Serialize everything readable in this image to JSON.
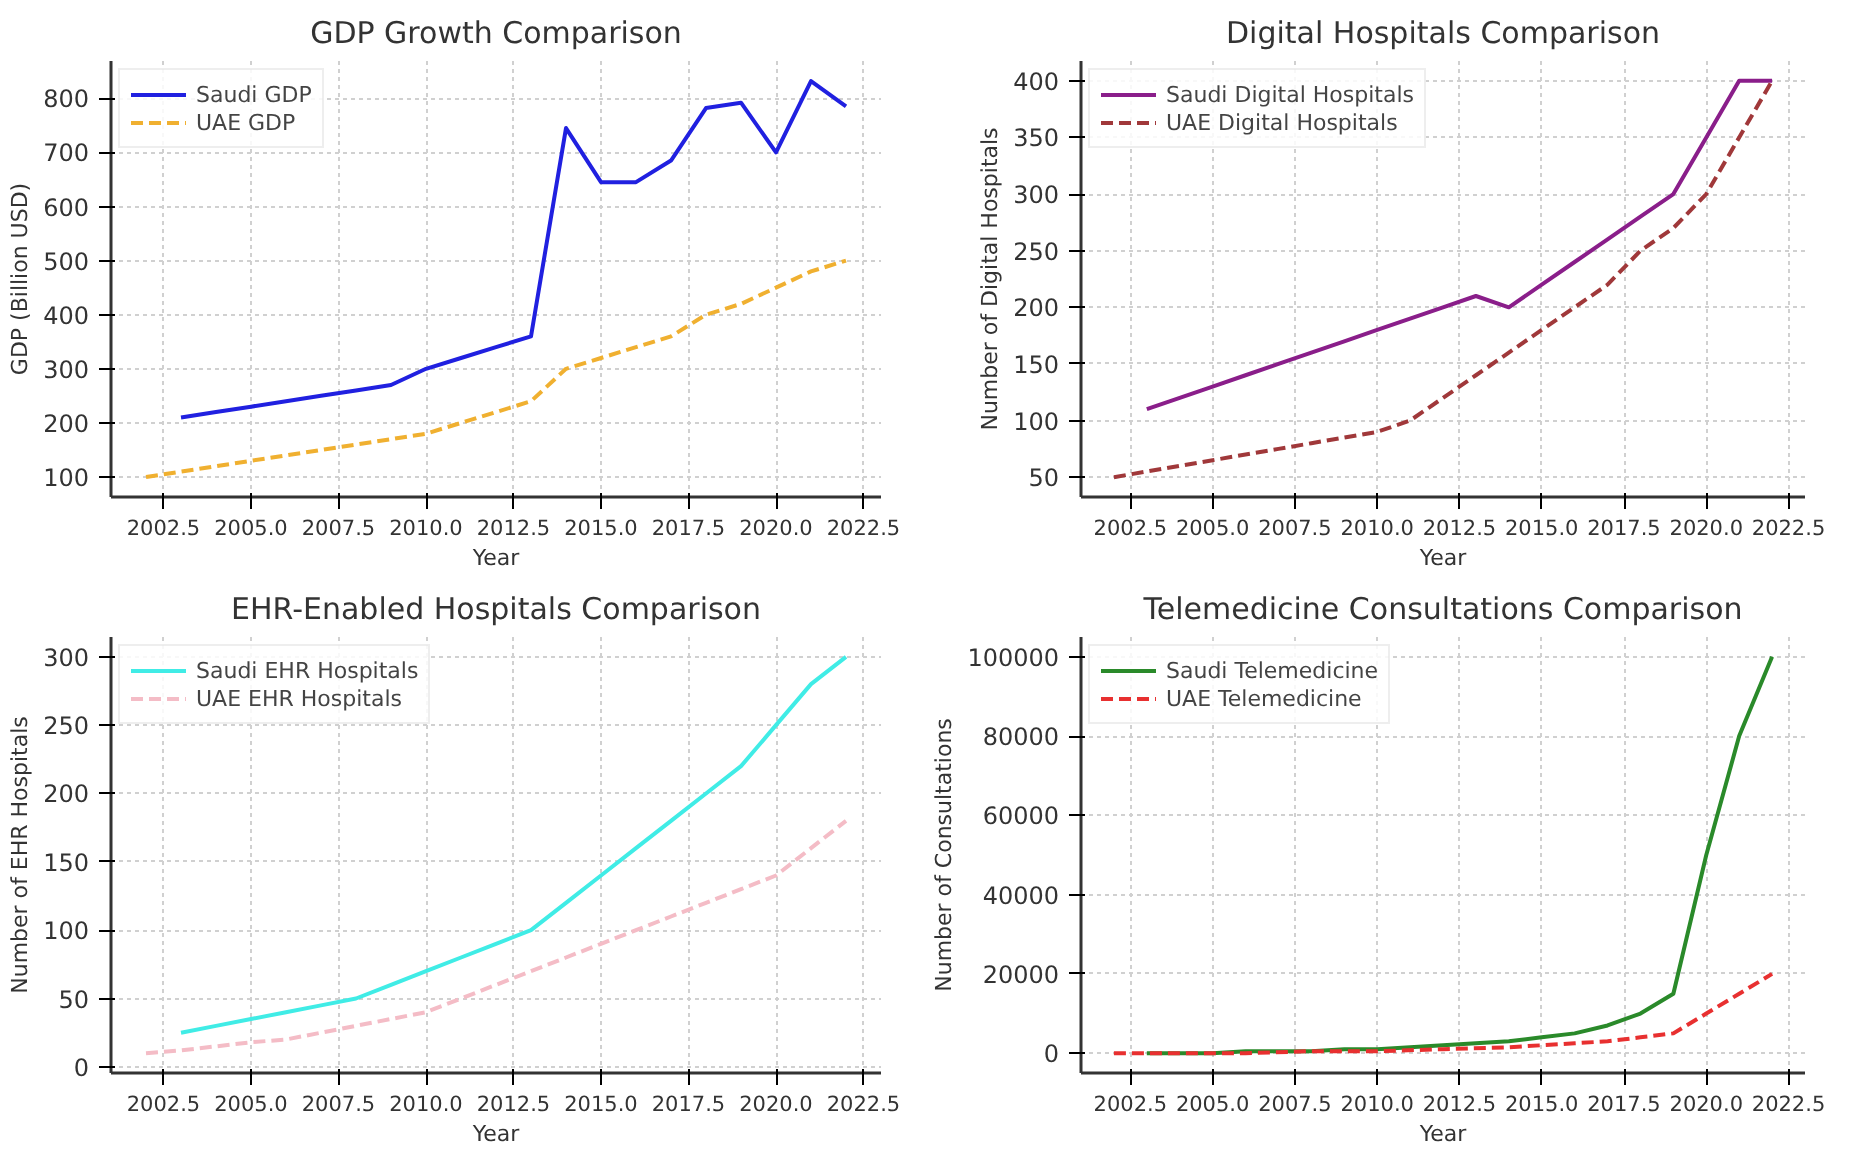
{
  "chart_data": [
    {
      "type": "line",
      "title": "GDP Growth Comparison",
      "xlabel": "Year",
      "ylabel": "GDP (Billion USD)",
      "xlim": [
        2001.0,
        2023.0
      ],
      "xticks": [
        2002.5,
        {
          "value": 2005,
          "label": "2005.0"
        },
        2007.5,
        {
          "value": 2010,
          "label": "2010.0"
        },
        2012.5,
        {
          "value": 2015,
          "label": "2015.0"
        },
        2017.5,
        {
          "value": 2020,
          "label": "2020.0"
        },
        2022.5
      ],
      "ylim": [
        63,
        869
      ],
      "yticks": [
        100,
        200,
        300,
        400,
        500,
        600,
        700,
        800
      ],
      "grid": true,
      "legend": "top left",
      "series": [
        {
          "name": "Saudi GDP",
          "color": "#2020e0",
          "line_style": "solid",
          "x": [
            2003,
            2004,
            2005,
            2006,
            2007,
            2008,
            2009,
            2010,
            2011,
            2012,
            2013,
            2014,
            2015,
            2016,
            2017,
            2018,
            2019,
            2020,
            2021,
            2022
          ],
          "values": [
            210,
            220,
            230,
            240,
            250,
            260,
            270,
            300,
            320,
            340,
            360,
            745,
            645,
            645,
            685,
            782,
            792,
            700,
            832,
            785
          ]
        },
        {
          "name": "UAE GDP",
          "color": "#f0b030",
          "line_style": "dashed",
          "x": [
            2002,
            2003,
            2004,
            2005,
            2006,
            2007,
            2008,
            2009,
            2010,
            2011,
            2012,
            2013,
            2014,
            2015,
            2016,
            2017,
            2018,
            2019,
            2020,
            2021,
            2022
          ],
          "values": [
            100,
            110,
            120,
            130,
            140,
            150,
            160,
            170,
            180,
            200,
            220,
            240,
            300,
            320,
            340,
            360,
            400,
            420,
            450,
            480,
            500
          ]
        }
      ]
    },
    {
      "type": "line",
      "title": "Digital Hospitals Comparison",
      "xlabel": "Year",
      "ylabel": "Number of Digital Hospitals",
      "xlim": [
        2001.0,
        2023.0
      ],
      "xticks": [
        2002.5,
        {
          "value": 2005,
          "label": "2005.0"
        },
        2007.5,
        {
          "value": 2010,
          "label": "2010.0"
        },
        2012.5,
        {
          "value": 2015,
          "label": "2015.0"
        },
        2017.5,
        {
          "value": 2020,
          "label": "2020.0"
        },
        2022.5
      ],
      "ylim": [
        32.5,
        417.5
      ],
      "yticks": [
        50,
        100,
        150,
        200,
        250,
        300,
        350,
        400
      ],
      "grid": true,
      "legend": "top left",
      "series": [
        {
          "name": "Saudi Digital Hospitals",
          "color": "#8a1e8a",
          "line_style": "solid",
          "x": [
            2003,
            2004,
            2005,
            2006,
            2007,
            2008,
            2009,
            2010,
            2011,
            2012,
            2013,
            2014,
            2015,
            2016,
            2017,
            2018,
            2019,
            2020,
            2021,
            2022
          ],
          "values": [
            110,
            120,
            130,
            140,
            150,
            160,
            170,
            180,
            190,
            200,
            210,
            200,
            220,
            240,
            260,
            280,
            300,
            350,
            400,
            400
          ]
        },
        {
          "name": "UAE Digital Hospitals",
          "color": "#a0383a",
          "line_style": "dashed",
          "x": [
            2002,
            2003,
            2004,
            2005,
            2006,
            2007,
            2008,
            2009,
            2010,
            2011,
            2012,
            2013,
            2014,
            2015,
            2016,
            2017,
            2018,
            2019,
            2020,
            2021,
            2022
          ],
          "values": [
            50,
            55,
            60,
            65,
            70,
            75,
            80,
            85,
            90,
            100,
            120,
            140,
            160,
            180,
            200,
            220,
            250,
            270,
            300,
            350,
            400
          ]
        }
      ]
    },
    {
      "type": "line",
      "title": "EHR-Enabled Hospitals Comparison",
      "xlabel": "Year",
      "ylabel": "Number of EHR Hospitals",
      "xlim": [
        2001.0,
        2023.0
      ],
      "xticks": [
        2002.5,
        {
          "value": 2005,
          "label": "2005.0"
        },
        2007.5,
        {
          "value": 2010,
          "label": "2010.0"
        },
        2012.5,
        {
          "value": 2015,
          "label": "2015.0"
        },
        2017.5,
        {
          "value": 2020,
          "label": "2020.0"
        },
        2022.5
      ],
      "ylim": [
        -4.5,
        314.5
      ],
      "yticks": [
        0,
        50,
        100,
        150,
        200,
        250,
        300
      ],
      "grid": true,
      "legend": "top left",
      "series": [
        {
          "name": "Saudi EHR Hospitals",
          "color": "#40ece6",
          "line_style": "solid",
          "x": [
            2003,
            2004,
            2005,
            2006,
            2007,
            2008,
            2009,
            2010,
            2011,
            2012,
            2013,
            2014,
            2015,
            2016,
            2017,
            2018,
            2019,
            2020,
            2021,
            2022
          ],
          "values": [
            25,
            30,
            35,
            40,
            45,
            50,
            60,
            70,
            80,
            90,
            100,
            120,
            140,
            160,
            180,
            200,
            220,
            250,
            280,
            300
          ]
        },
        {
          "name": "UAE EHR Hospitals",
          "color": "#f4bcc6",
          "line_style": "dashed",
          "x": [
            2002,
            2003,
            2004,
            2005,
            2006,
            2007,
            2008,
            2009,
            2010,
            2011,
            2012,
            2013,
            2014,
            2015,
            2016,
            2017,
            2018,
            2019,
            2020,
            2021,
            2022
          ],
          "values": [
            10,
            12,
            15,
            18,
            20,
            25,
            30,
            35,
            40,
            50,
            60,
            70,
            80,
            90,
            100,
            110,
            120,
            130,
            140,
            160,
            180
          ]
        }
      ]
    },
    {
      "type": "line",
      "title": "Telemedicine Consultations Comparison",
      "xlabel": "Year",
      "ylabel": "Number of Consultations",
      "xlim": [
        2001.0,
        2023.0
      ],
      "xticks": [
        2002.5,
        {
          "value": 2005,
          "label": "2005.0"
        },
        2007.5,
        {
          "value": 2010,
          "label": "2010.0"
        },
        2012.5,
        {
          "value": 2015,
          "label": "2015.0"
        },
        2017.5,
        {
          "value": 2020,
          "label": "2020.0"
        },
        2022.5
      ],
      "ylim": [
        -5000,
        105000
      ],
      "yticks": [
        0,
        20000,
        40000,
        60000,
        80000,
        100000
      ],
      "grid": true,
      "legend": "top left",
      "series": [
        {
          "name": "Saudi Telemedicine",
          "color": "#2a8a2a",
          "line_style": "solid",
          "x": [
            2003,
            2004,
            2005,
            2006,
            2007,
            2008,
            2009,
            2010,
            2011,
            2012,
            2013,
            2014,
            2015,
            2016,
            2017,
            2018,
            2019,
            2020,
            2021,
            2022
          ],
          "values": [
            0,
            0,
            0,
            500,
            500,
            500,
            1000,
            1000,
            1500,
            2000,
            2500,
            3000,
            4000,
            5000,
            7000,
            10000,
            15000,
            50000,
            80000,
            100000
          ]
        },
        {
          "name": "UAE Telemedicine",
          "color": "#e83030",
          "line_style": "dashed",
          "x": [
            2002,
            2004,
            2006,
            2008,
            2010,
            2012,
            2014,
            2015,
            2016,
            2017,
            2018,
            2019,
            2020,
            2021,
            2022
          ],
          "values": [
            0,
            0,
            0,
            500,
            500,
            1000,
            1500,
            2000,
            2500,
            3000,
            4000,
            5000,
            10000,
            15000,
            20000
          ]
        }
      ]
    }
  ]
}
